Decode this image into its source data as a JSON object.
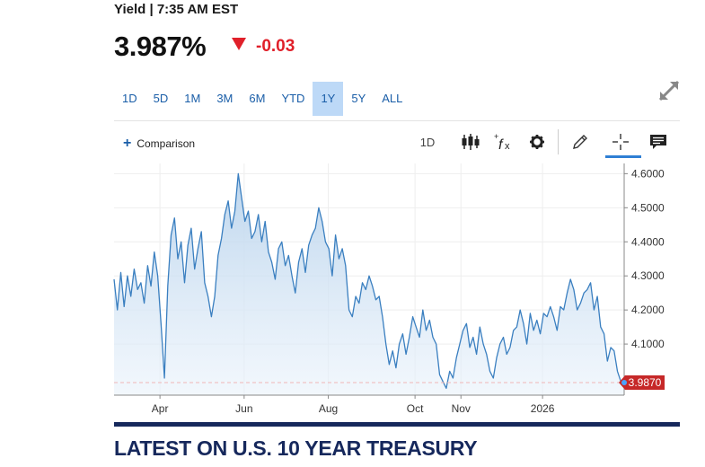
{
  "quote": {
    "yield_label": "Yield | 7:35 AM EST",
    "price": "3.987%",
    "change": "-0.03"
  },
  "ranges": [
    "1D",
    "5D",
    "1M",
    "3M",
    "6M",
    "YTD",
    "1Y",
    "5Y",
    "ALL"
  ],
  "active_range": "1Y",
  "toolbar": {
    "comparison_label": "Comparison",
    "interval_label": "1D"
  },
  "colors": {
    "line": "#3a7fc0",
    "fill_top": "#b9d3ec",
    "change_negative": "#e0202a",
    "range_active_bg": "#bdd9f7",
    "last_price_tag": "#c62828",
    "headline": "#16285c"
  },
  "icons": [
    "expand-icon",
    "candlestick-icon",
    "function-icon",
    "gear-icon",
    "pencil-icon",
    "crosshair-icon",
    "comment-icon"
  ],
  "chart_data": {
    "type": "area",
    "x_tick_labels": [
      "Apr",
      "Jun",
      "Aug",
      "Oct",
      "Nov",
      "2026"
    ],
    "ylim": [
      3.95,
      4.63
    ],
    "y_ticks": [
      4.1,
      4.2,
      4.3,
      4.4,
      4.5,
      4.6
    ],
    "y_tick_labels": [
      "4.1000",
      "4.2000",
      "4.3000",
      "4.4000",
      "4.5000",
      "4.6000"
    ],
    "axis_position": "right",
    "last_value": 3.987,
    "last_value_label": "3.9870",
    "series": [
      {
        "values": [
          4.29,
          4.2,
          4.31,
          4.21,
          4.3,
          4.24,
          4.32,
          4.26,
          4.28,
          4.22,
          4.33,
          4.27,
          4.37,
          4.3,
          4.16,
          4.0,
          4.27,
          4.42,
          4.47,
          4.35,
          4.4,
          4.28,
          4.39,
          4.44,
          4.32,
          4.38,
          4.43,
          4.28,
          4.24,
          4.18,
          4.24,
          4.36,
          4.41,
          4.48,
          4.52,
          4.44,
          4.49,
          4.6,
          4.53,
          4.46,
          4.49,
          4.41,
          4.43,
          4.48,
          4.4,
          4.46,
          4.37,
          4.34,
          4.29,
          4.38,
          4.4,
          4.33,
          4.36,
          4.3,
          4.25,
          4.34,
          4.38,
          4.31,
          4.39,
          4.42,
          4.44,
          4.5,
          4.46,
          4.4,
          4.38,
          4.3,
          4.42,
          4.35,
          4.38,
          4.33,
          4.2,
          4.18,
          4.24,
          4.22,
          4.28,
          4.26,
          4.3,
          4.27,
          4.23,
          4.24,
          4.18,
          4.1,
          4.04,
          4.08,
          4.03,
          4.1,
          4.13,
          4.07,
          4.12,
          4.18,
          4.15,
          4.12,
          4.2,
          4.14,
          4.17,
          4.12,
          4.1,
          4.01,
          3.99,
          3.97,
          4.02,
          4.0,
          4.06,
          4.1,
          4.14,
          4.16,
          4.09,
          4.12,
          4.07,
          4.15,
          4.1,
          4.07,
          4.02,
          4.0,
          4.06,
          4.1,
          4.12,
          4.07,
          4.09,
          4.14,
          4.15,
          4.2,
          4.16,
          4.1,
          4.19,
          4.14,
          4.17,
          4.13,
          4.19,
          4.18,
          4.21,
          4.18,
          4.14,
          4.21,
          4.2,
          4.25,
          4.29,
          4.26,
          4.2,
          4.22,
          4.25,
          4.26,
          4.28,
          4.2,
          4.24,
          4.15,
          4.13,
          4.05,
          4.09,
          4.08,
          4.02,
          3.99,
          3.987
        ]
      }
    ]
  },
  "headline": "LATEST ON U.S. 10 YEAR TREASURY"
}
